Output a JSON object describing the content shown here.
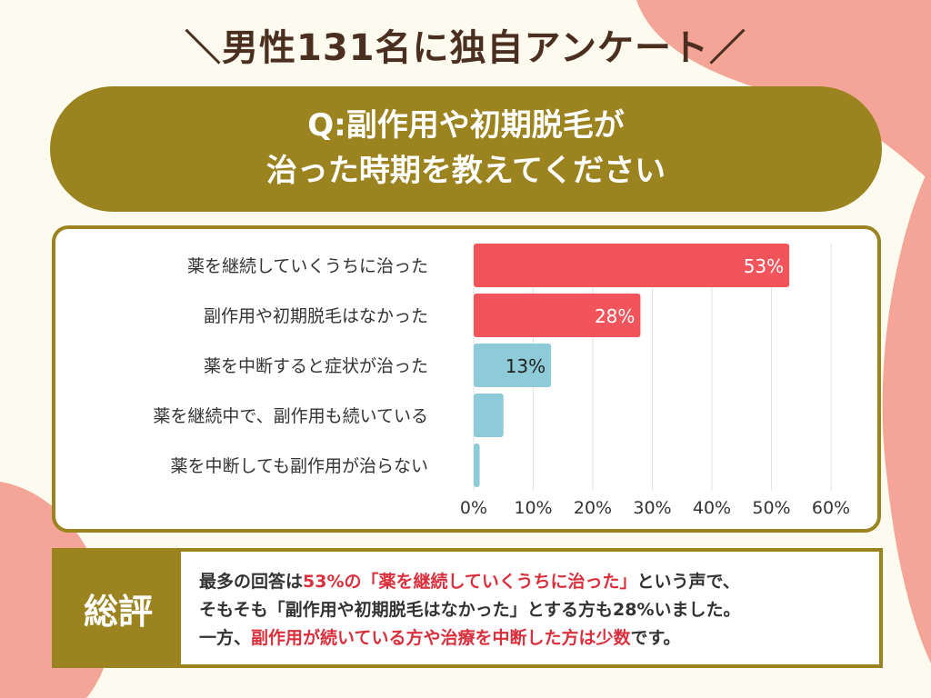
{
  "title": "＼男性131名に独自アンケート／",
  "question": {
    "line1": "Q:副作用や初期脱毛が",
    "line2": "治った時期を教えてください"
  },
  "colors": {
    "background": "#fdfbef",
    "accent_olive": "#9b8320",
    "blob_pink": "#f4a597",
    "bar_red": "#f2545b",
    "bar_blue": "#8ecbd8",
    "highlight_text": "#d9303d"
  },
  "chart_data": {
    "type": "bar",
    "orientation": "horizontal",
    "categories": [
      "薬を継続していくうちに治った",
      "副作用や初期脱毛はなかった",
      "薬を中断すると症状が治った",
      "薬を継続中で、副作用も続いている",
      "薬を中断しても副作用が治らない"
    ],
    "values": [
      53,
      28,
      13,
      5,
      1
    ],
    "data_labels": [
      "53%",
      "28%",
      "13%",
      "",
      ""
    ],
    "bar_colors": [
      "#f2545b",
      "#f2545b",
      "#8ecbd8",
      "#8ecbd8",
      "#8ecbd8"
    ],
    "xlim": [
      0,
      60
    ],
    "xticks": [
      "0%",
      "10%",
      "20%",
      "30%",
      "40%",
      "50%",
      "60%"
    ],
    "grid": "vertical",
    "unit": "%"
  },
  "summary": {
    "label": "総評",
    "p1a": "最多の回答は",
    "p1b": "53%の「薬を継続していくうちに治った」",
    "p1c": "という声で、",
    "p2": "そもそも「副作用や初期脱毛はなかった」とする方も28%いました。",
    "p3a": "一方、",
    "p3b": "副作用が続いている方や治療を中断した方は少数",
    "p3c": "です。"
  }
}
